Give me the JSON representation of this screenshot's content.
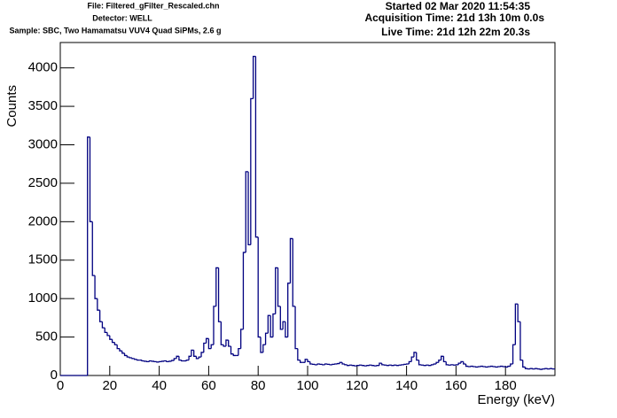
{
  "chart_data": {
    "type": "histogram",
    "header_left": [
      "File: Filtered_gFilter_Rescaled.chn",
      "Detector: WELL",
      "Sample: SBC, Two Hamamatsu VUV4 Quad SiPMs, 2.6 g"
    ],
    "header_right": [
      "Started 02 Mar 2020 11:54:35",
      "Acquisition Time: 21d 13h 10m 0.0s",
      "Live Time: 21d 12h 22m 20.3s"
    ],
    "xlabel": "Energy (keV)",
    "ylabel": "Counts",
    "color": "#000080",
    "xlim": [
      0,
      200
    ],
    "ylim": [
      0,
      4330
    ],
    "xticks": [
      0,
      20,
      40,
      60,
      80,
      100,
      120,
      140,
      160,
      180
    ],
    "yticks": [
      0,
      500,
      1000,
      1500,
      2000,
      2500,
      3000,
      3500,
      4000
    ],
    "bins": [
      0,
      1,
      2,
      3,
      4,
      5,
      6,
      7,
      8,
      9,
      10,
      11,
      12,
      13,
      14,
      15,
      16,
      17,
      18,
      19,
      20,
      21,
      22,
      23,
      24,
      25,
      26,
      27,
      28,
      29,
      30,
      31,
      32,
      33,
      34,
      35,
      36,
      37,
      38,
      39,
      40,
      41,
      42,
      43,
      44,
      45,
      46,
      47,
      48,
      49,
      50,
      51,
      52,
      53,
      54,
      55,
      56,
      57,
      58,
      59,
      60,
      61,
      62,
      63,
      64,
      65,
      66,
      67,
      68,
      69,
      70,
      71,
      72,
      73,
      74,
      75,
      76,
      77,
      78,
      79,
      80,
      81,
      82,
      83,
      84,
      85,
      86,
      87,
      88,
      89,
      90,
      91,
      92,
      93,
      94,
      95,
      96,
      97,
      98,
      99,
      100,
      101,
      102,
      103,
      104,
      105,
      106,
      107,
      108,
      109,
      110,
      111,
      112,
      113,
      114,
      115,
      116,
      117,
      118,
      119,
      120,
      121,
      122,
      123,
      124,
      125,
      126,
      127,
      128,
      129,
      130,
      131,
      132,
      133,
      134,
      135,
      136,
      137,
      138,
      139,
      140,
      141,
      142,
      143,
      144,
      145,
      146,
      147,
      148,
      149,
      150,
      151,
      152,
      153,
      154,
      155,
      156,
      157,
      158,
      159,
      160,
      161,
      162,
      163,
      164,
      165,
      166,
      167,
      168,
      169,
      170,
      171,
      172,
      173,
      174,
      175,
      176,
      177,
      178,
      179,
      180,
      181,
      182,
      183,
      184,
      185,
      186,
      187,
      188,
      189,
      190,
      191,
      192,
      193,
      194,
      195,
      196,
      197,
      198,
      199,
      200
    ],
    "counts": [
      0,
      0,
      0,
      0,
      0,
      0,
      0,
      0,
      0,
      0,
      0,
      3100,
      2000,
      1300,
      1000,
      850,
      700,
      620,
      560,
      520,
      470,
      430,
      400,
      350,
      320,
      290,
      260,
      240,
      230,
      220,
      210,
      200,
      200,
      190,
      185,
      180,
      190,
      185,
      180,
      175,
      180,
      185,
      190,
      180,
      185,
      195,
      220,
      250,
      200,
      190,
      190,
      200,
      250,
      330,
      250,
      220,
      240,
      300,
      420,
      480,
      350,
      400,
      900,
      1400,
      700,
      400,
      380,
      460,
      380,
      280,
      260,
      260,
      350,
      600,
      1600,
      2650,
      1700,
      3600,
      4150,
      1800,
      500,
      300,
      400,
      550,
      780,
      500,
      800,
      1400,
      900,
      600,
      700,
      500,
      1200,
      1780,
      900,
      350,
      200,
      170,
      170,
      210,
      180,
      150,
      145,
      140,
      150,
      145,
      140,
      150,
      145,
      140,
      145,
      150,
      155,
      170,
      150,
      140,
      130,
      135,
      130,
      125,
      130,
      135,
      130,
      125,
      130,
      135,
      130,
      125,
      130,
      160,
      140,
      135,
      130,
      135,
      130,
      135,
      130,
      135,
      140,
      145,
      150,
      180,
      240,
      300,
      200,
      140,
      135,
      130,
      135,
      130,
      140,
      150,
      170,
      200,
      250,
      180,
      140,
      135,
      140,
      135,
      140,
      160,
      180,
      150,
      120,
      115,
      120,
      115,
      110,
      115,
      120,
      115,
      110,
      115,
      120,
      115,
      110,
      115,
      120,
      115,
      110,
      120,
      150,
      400,
      930,
      700,
      200,
      110,
      90,
      85,
      90,
      85,
      90,
      85,
      80,
      85,
      90,
      85,
      90,
      85
    ]
  }
}
